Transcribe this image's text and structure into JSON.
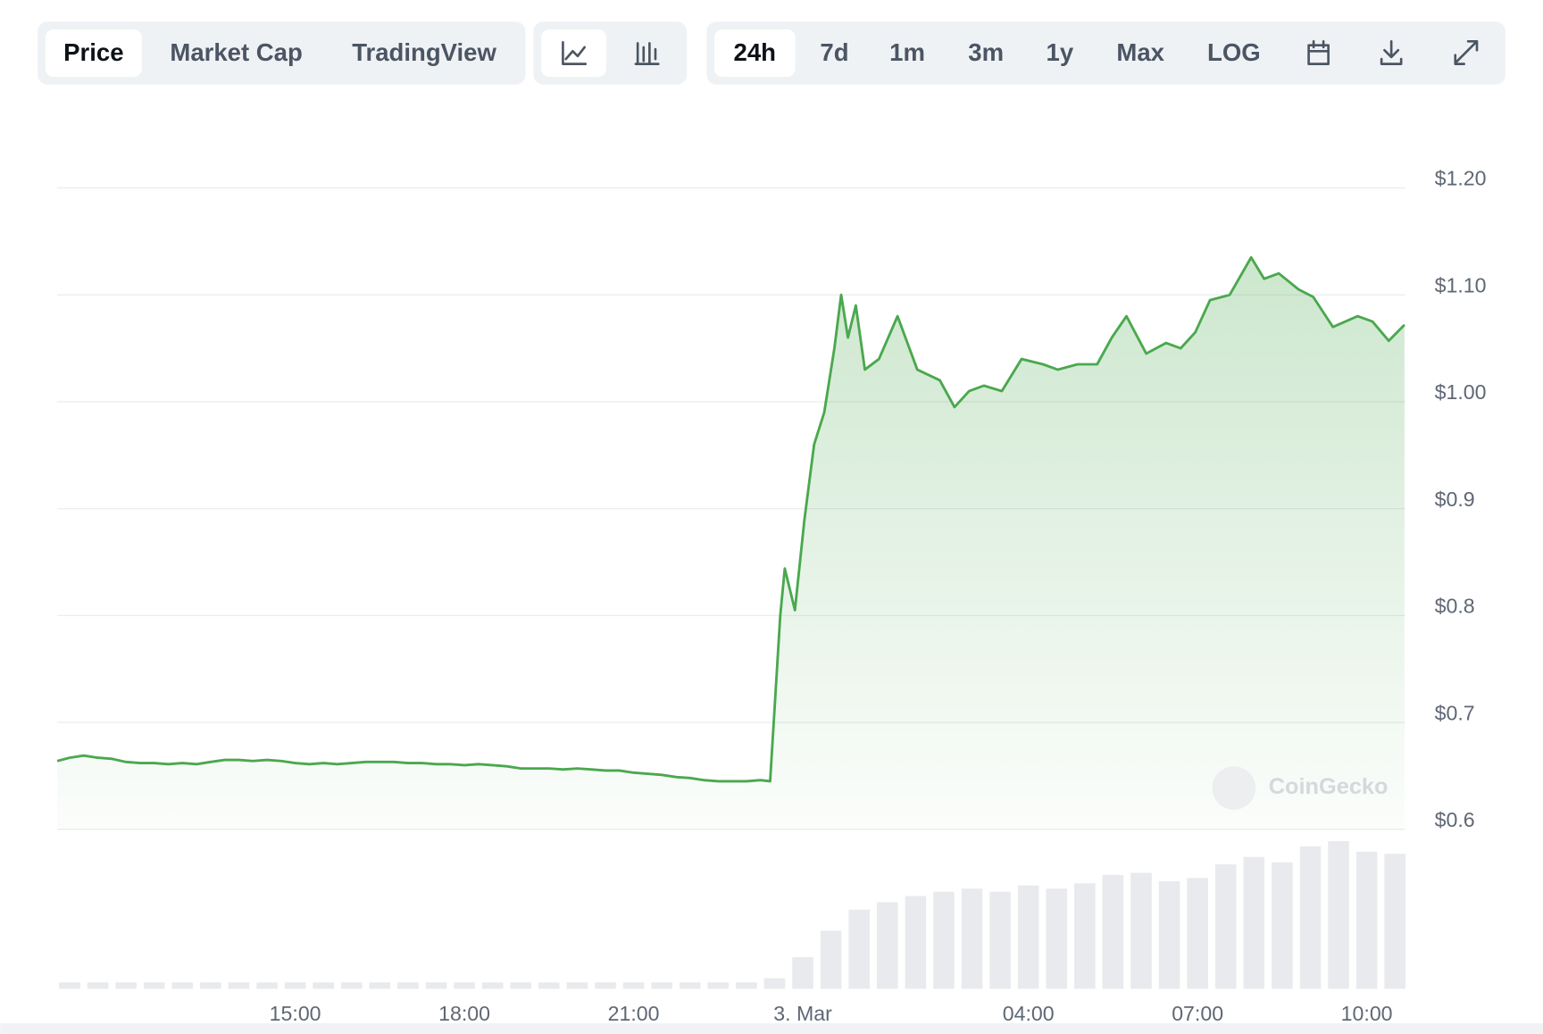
{
  "toolbar": {
    "views": [
      "Price",
      "Market Cap",
      "TradingView"
    ],
    "ranges": [
      "24h",
      "7d",
      "1m",
      "3m",
      "1y",
      "Max",
      "LOG"
    ]
  },
  "chart_data": {
    "type": "line",
    "watermark": "CoinGecko",
    "xlim": [
      10.78,
      34.68
    ],
    "ylim": [
      0.6,
      1.2
    ],
    "xticks": [
      {
        "value": 15,
        "label": "15:00"
      },
      {
        "value": 18,
        "label": "18:00"
      },
      {
        "value": 21,
        "label": "21:00"
      },
      {
        "value": 24,
        "label": "3. Mar"
      },
      {
        "value": 28,
        "label": "04:00"
      },
      {
        "value": 31,
        "label": "07:00"
      },
      {
        "value": 34,
        "label": "10:00"
      }
    ],
    "yticks": [
      {
        "value": 1.2,
        "label": "$1.20"
      },
      {
        "value": 1.1,
        "label": "$1.10"
      },
      {
        "value": 1.0,
        "label": "$1.00"
      },
      {
        "value": 0.9,
        "label": "$0.9"
      },
      {
        "value": 0.8,
        "label": "$0.8"
      },
      {
        "value": 0.7,
        "label": "$0.7"
      },
      {
        "value": 0.6,
        "label": "$0.6"
      }
    ],
    "grid": true,
    "series": [
      {
        "color": "#4aa84e",
        "x": [
          10.78,
          11,
          11.25,
          11.5,
          11.75,
          12,
          12.25,
          12.5,
          12.75,
          13,
          13.25,
          13.5,
          13.75,
          14,
          14.25,
          14.5,
          14.75,
          15,
          15.25,
          15.5,
          15.75,
          16,
          16.25,
          16.5,
          16.75,
          17,
          17.25,
          17.5,
          17.75,
          18,
          18.25,
          18.5,
          18.75,
          19,
          19.25,
          19.5,
          19.75,
          20,
          20.25,
          20.5,
          20.75,
          21,
          21.25,
          21.5,
          21.75,
          22,
          22.25,
          22.5,
          22.75,
          23,
          23.25,
          23.42,
          23.6,
          23.68,
          23.86,
          24.03,
          24.2,
          24.38,
          24.56,
          24.68,
          24.8,
          24.94,
          25.1,
          25.35,
          25.68,
          26.03,
          26.43,
          26.69,
          26.95,
          27.21,
          27.53,
          27.88,
          28.26,
          28.52,
          28.87,
          29.22,
          29.48,
          29.74,
          30.09,
          30.44,
          30.7,
          30.96,
          31.22,
          31.57,
          31.95,
          32.18,
          32.44,
          32.79,
          33.05,
          33.4,
          33.84,
          34.1,
          34.39,
          34.67
        ],
        "values": [
          0.664,
          0.667,
          0.669,
          0.667,
          0.666,
          0.663,
          0.662,
          0.662,
          0.661,
          0.662,
          0.661,
          0.663,
          0.665,
          0.665,
          0.664,
          0.665,
          0.664,
          0.662,
          0.661,
          0.662,
          0.661,
          0.662,
          0.663,
          0.663,
          0.663,
          0.662,
          0.662,
          0.661,
          0.661,
          0.66,
          0.661,
          0.66,
          0.659,
          0.657,
          0.657,
          0.657,
          0.656,
          0.657,
          0.656,
          0.655,
          0.655,
          0.653,
          0.652,
          0.651,
          0.649,
          0.648,
          0.646,
          0.645,
          0.645,
          0.645,
          0.646,
          0.645,
          0.8,
          0.844,
          0.805,
          0.89,
          0.96,
          0.99,
          1.05,
          1.1,
          1.06,
          1.09,
          1.03,
          1.04,
          1.08,
          1.03,
          1.02,
          0.995,
          1.01,
          1.015,
          1.01,
          1.04,
          1.035,
          1.03,
          1.035,
          1.035,
          1.06,
          1.08,
          1.045,
          1.055,
          1.05,
          1.065,
          1.095,
          1.1,
          1.135,
          1.115,
          1.12,
          1.105,
          1.098,
          1.07,
          1.08,
          1.075,
          1.057,
          1.072
        ]
      }
    ],
    "volume": {
      "color": "#e8eaed",
      "x": [
        11,
        11.5,
        12,
        12.5,
        13,
        13.5,
        14,
        14.5,
        15,
        15.5,
        16,
        16.5,
        17,
        17.5,
        18,
        18.5,
        19,
        19.5,
        20,
        20.5,
        21,
        21.5,
        22,
        22.5,
        23,
        23.5,
        24,
        24.5,
        25,
        25.5,
        26,
        26.5,
        27,
        27.5,
        28,
        28.5,
        29,
        29.5,
        30,
        30.5,
        31,
        31.5,
        32,
        32.5,
        33,
        33.5,
        34,
        34.5
      ],
      "values": [
        6,
        6,
        6,
        6,
        6,
        6,
        6,
        6,
        6,
        6,
        6,
        6,
        6,
        6,
        6,
        6,
        6,
        6,
        6,
        6,
        6,
        6,
        6,
        6,
        6,
        10,
        30,
        55,
        75,
        82,
        88,
        92,
        95,
        92,
        98,
        95,
        100,
        108,
        110,
        102,
        105,
        118,
        125,
        120,
        135,
        140,
        130,
        128
      ]
    }
  }
}
